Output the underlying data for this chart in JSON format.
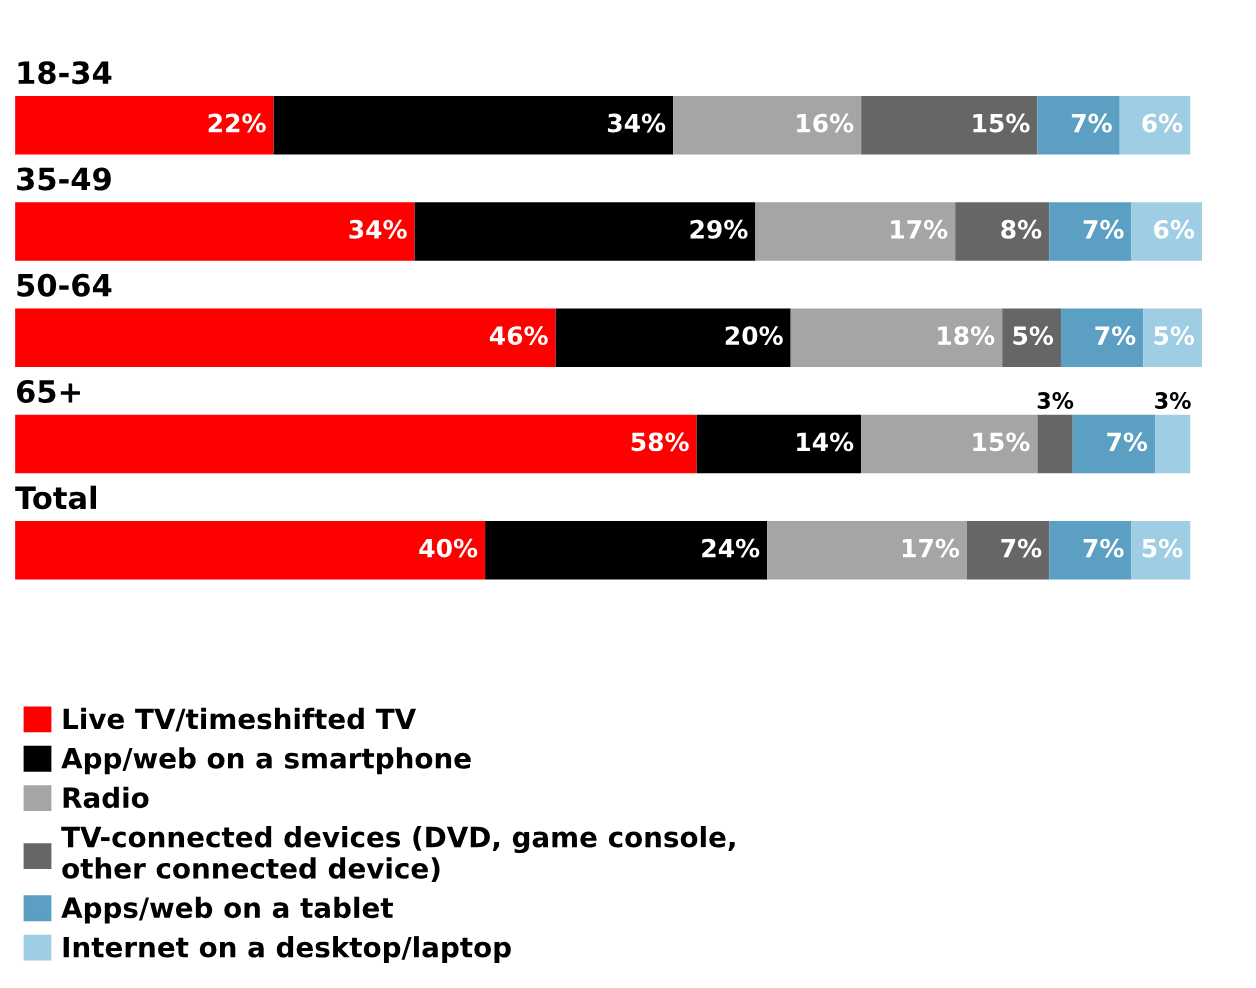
{
  "chart_data": {
    "type": "bar",
    "orientation": "horizontal",
    "stacked": true,
    "legend": "bottom",
    "categories": [
      "18-34",
      "35-49",
      "50-64",
      "65+",
      "Total"
    ],
    "series": [
      {
        "name": "Live TV/timeshifted TV",
        "color": "#ff0000",
        "values": [
          22,
          34,
          46,
          58,
          40
        ],
        "value_labels": [
          "22%",
          "34%",
          "46%",
          "58%",
          "40%"
        ]
      },
      {
        "name": "App/web on a smartphone",
        "color": "#000000",
        "values": [
          34,
          29,
          20,
          14,
          24
        ],
        "value_labels": [
          "34%",
          "29%",
          "20%",
          "14%",
          "24%"
        ]
      },
      {
        "name": "Radio",
        "color": "#a5a5a5",
        "values": [
          16,
          17,
          18,
          15,
          17
        ],
        "value_labels": [
          "16%",
          "17%",
          "18%",
          "15%",
          "17%"
        ]
      },
      {
        "name": "TV-connected devices (DVD, game console,\nother connected device)",
        "color": "#666666",
        "values": [
          15,
          8,
          5,
          3,
          7
        ],
        "value_labels": [
          "15%",
          "8%",
          "5%",
          "3%",
          "7%"
        ]
      },
      {
        "name": "Apps/web on a tablet",
        "color": "#5b9fc2",
        "values": [
          7,
          7,
          7,
          7,
          7
        ],
        "value_labels": [
          "7%",
          "7%",
          "7%",
          "7%",
          "7%"
        ]
      },
      {
        "name": "Internet on a desktop/laptop",
        "color": "#9fcde3",
        "values": [
          6,
          6,
          5,
          3,
          5
        ],
        "value_labels": [
          "6%",
          "6%",
          "5%",
          "3%",
          "5%"
        ]
      }
    ]
  }
}
